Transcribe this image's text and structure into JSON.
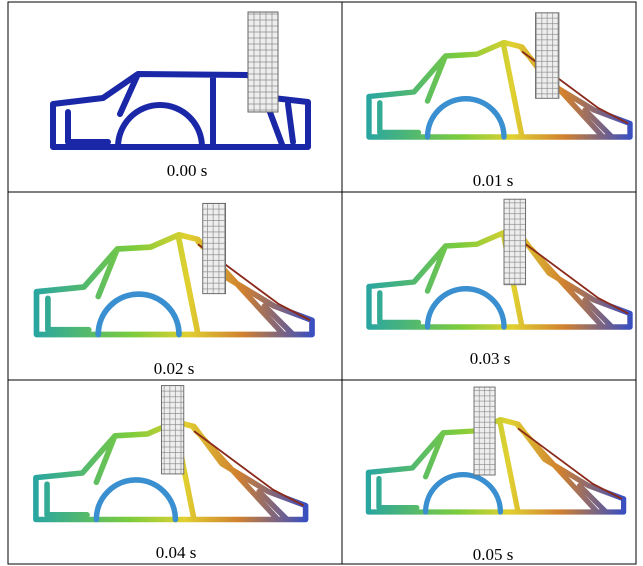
{
  "panels": [
    {
      "caption": "0.00 s"
    },
    {
      "caption": "0.01 s"
    },
    {
      "caption": "0.02 s"
    },
    {
      "caption": "0.03 s"
    },
    {
      "caption": "0.04 s"
    },
    {
      "caption": "0.05 s"
    }
  ]
}
